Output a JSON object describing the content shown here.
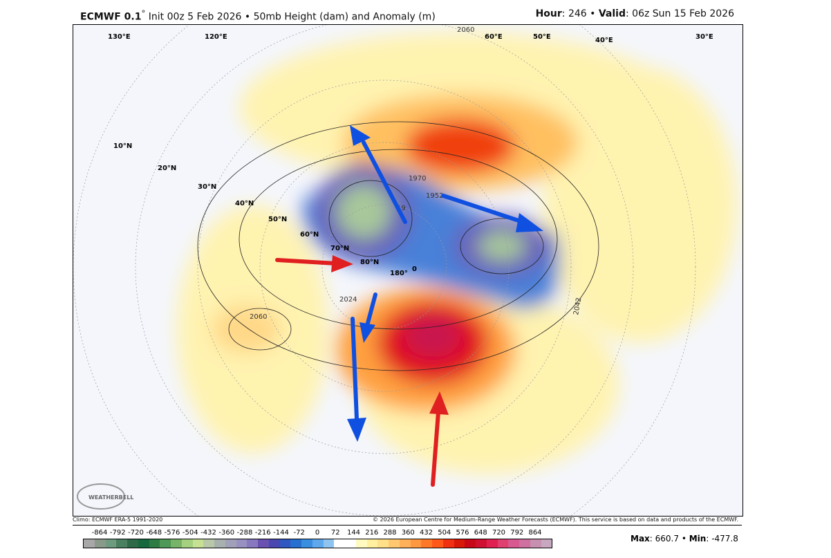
{
  "header": {
    "model": "ECMWF 0.1",
    "degree": "°",
    "init": "Init 00z 5 Feb 2026",
    "bullet": "•",
    "product": "50mb Height (dam) and Anomaly (m)",
    "hour_label": "Hour",
    "hour": "246",
    "valid_label": "Valid",
    "valid": "06z Sun 15 Feb 2026"
  },
  "map": {
    "latitude_labels": [
      "10°N",
      "20°N",
      "30°N",
      "40°N",
      "50°N",
      "60°N",
      "70°N",
      "80°N"
    ],
    "longitude_labels": [
      "130°E",
      "120°E",
      "60°E",
      "50°E",
      "40°E",
      "30°E",
      "180°",
      "0"
    ],
    "contour_labels": [
      "2060",
      "2060",
      "1970",
      "1952",
      "19",
      "2042",
      "2024",
      "2060"
    ],
    "arrows": [
      {
        "color": "#e02020",
        "direction": "east"
      },
      {
        "color": "#e02020",
        "direction": "north"
      },
      {
        "color": "#1050e0",
        "direction": "northwest"
      },
      {
        "color": "#1050e0",
        "direction": "southeast"
      },
      {
        "color": "#1050e0",
        "direction": "south"
      },
      {
        "color": "#1050e0",
        "direction": "south"
      }
    ],
    "logo": "WEATHERBELL"
  },
  "footer": {
    "climo": "Climo: ECMWF ERA-5 1991-2020",
    "copyright": "© 2026 European Centre for Medium-Range Weather Forecasts (ECMWF). This service is based on data and products of the ECMWF.",
    "max_label": "Max",
    "max": "660.7",
    "min_label": "Min",
    "min": "-477.8"
  },
  "colorbar": {
    "ticks": [
      "-864",
      "-792",
      "-720",
      "-648",
      "-576",
      "-504",
      "-432",
      "-360",
      "-288",
      "-216",
      "-144",
      "-72",
      "0",
      "72",
      "144",
      "216",
      "288",
      "360",
      "432",
      "504",
      "576",
      "648",
      "720",
      "792",
      "864"
    ],
    "colors": [
      "#a8a8a8",
      "#8a9a8a",
      "#6e9a80",
      "#4a8060",
      "#2e6a48",
      "#17683c",
      "#2e7c44",
      "#4e9858",
      "#78b468",
      "#a4d080",
      "#c8e094",
      "#b8c8a8",
      "#a8b0b0",
      "#a0a0b8",
      "#9890c0",
      "#8878c0",
      "#6a50b0",
      "#4848b0",
      "#3058c0",
      "#2870d0",
      "#3a8ee0",
      "#60a8ec",
      "#90c4f0",
      "#ffffff",
      "#ffffff",
      "#fffac0",
      "#fff0a0",
      "#ffe088",
      "#ffc870",
      "#ffb058",
      "#ff9840",
      "#ff7828",
      "#ff5818",
      "#f03010",
      "#d81808",
      "#c80818",
      "#d01030",
      "#e02050",
      "#e04070",
      "#d85890",
      "#d070a0",
      "#c890b0",
      "#c8a8c0"
    ]
  }
}
